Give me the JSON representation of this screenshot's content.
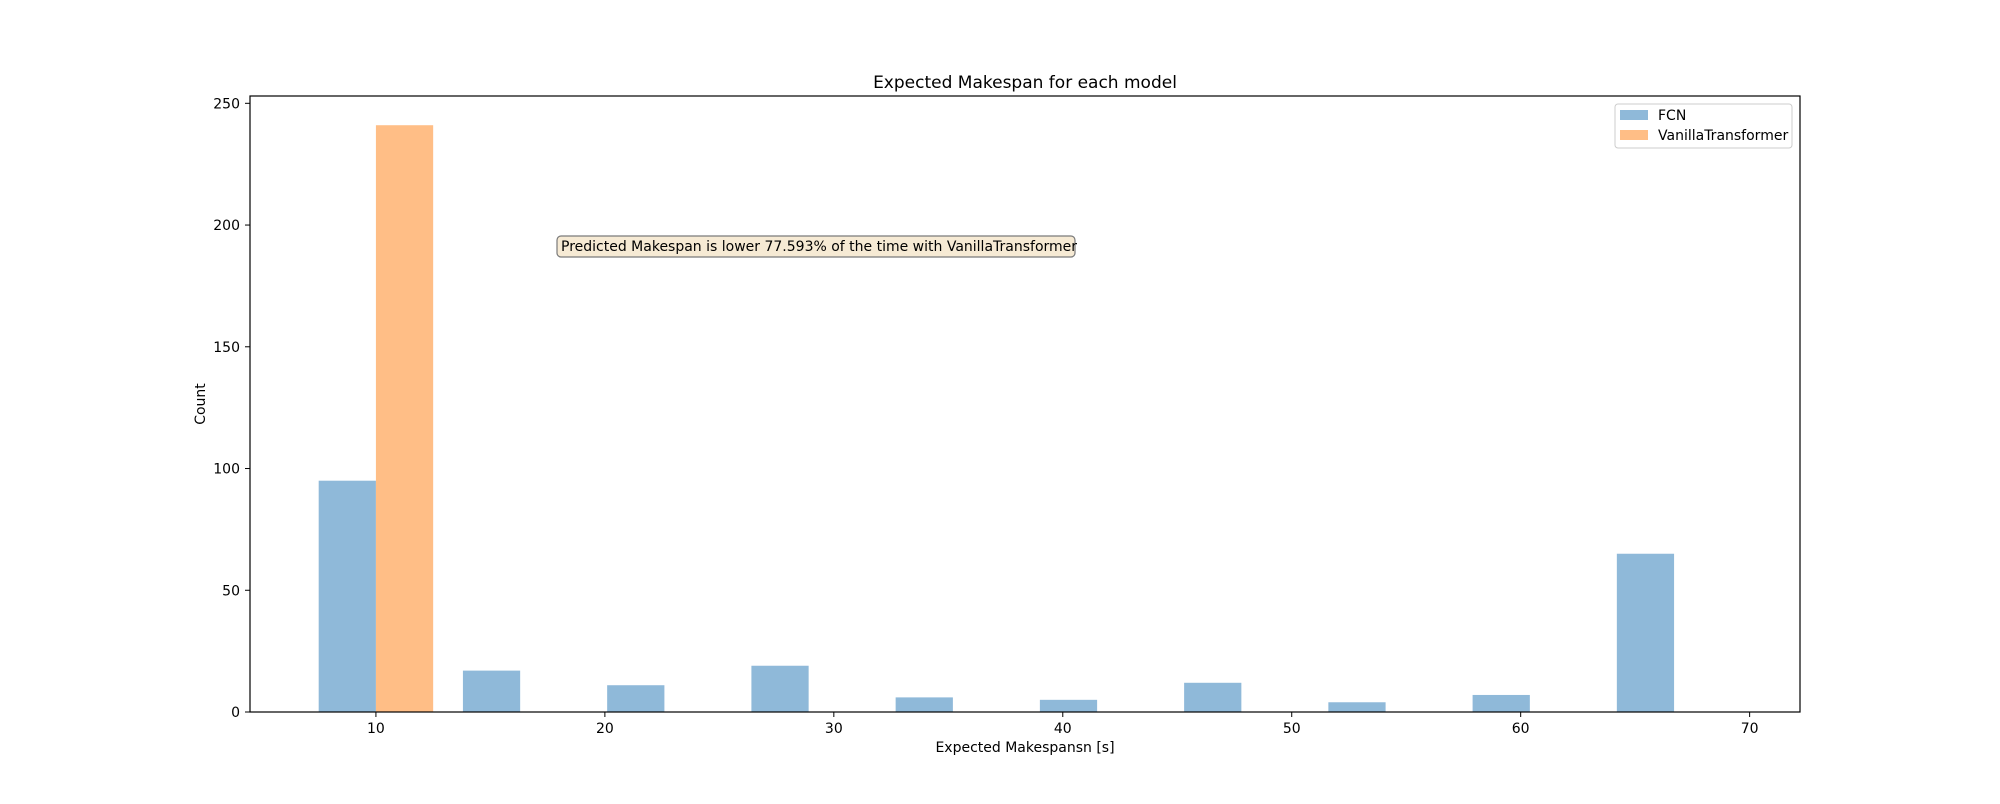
{
  "chart_data": {
    "type": "bar",
    "title": "Expected Makespan for each model",
    "xlabel": "Expected Makespansn [s]",
    "ylabel": "Count",
    "xlim": [
      4.5,
      72.2
    ],
    "ylim": [
      0,
      253
    ],
    "xticks": [
      10,
      20,
      30,
      40,
      50,
      60,
      70
    ],
    "yticks": [
      0,
      50,
      100,
      150,
      200,
      250
    ],
    "grid": false,
    "legend_position": "top-right",
    "series": [
      {
        "name": "FCN",
        "color": "#8fb9d9",
        "bars": [
          {
            "x0": 7.5,
            "x1": 10.0,
            "value": 95
          },
          {
            "x0": 13.8,
            "x1": 16.3,
            "value": 17
          },
          {
            "x0": 20.1,
            "x1": 22.6,
            "value": 11
          },
          {
            "x0": 26.4,
            "x1": 28.9,
            "value": 19
          },
          {
            "x0": 32.7,
            "x1": 35.2,
            "value": 6
          },
          {
            "x0": 39.0,
            "x1": 41.5,
            "value": 5
          },
          {
            "x0": 45.3,
            "x1": 47.8,
            "value": 12
          },
          {
            "x0": 51.6,
            "x1": 54.1,
            "value": 4
          },
          {
            "x0": 57.9,
            "x1": 60.4,
            "value": 7
          },
          {
            "x0": 64.2,
            "x1": 66.7,
            "value": 65
          }
        ]
      },
      {
        "name": "VanillaTransformer",
        "color": "#ffbe86",
        "bars": [
          {
            "x0": 10.0,
            "x1": 12.5,
            "value": 241
          }
        ]
      }
    ],
    "annotation": {
      "text": "Predicted Makespan is lower 77.593% of the time with VanillaTransformer",
      "x": 18.0,
      "y": 191
    }
  }
}
